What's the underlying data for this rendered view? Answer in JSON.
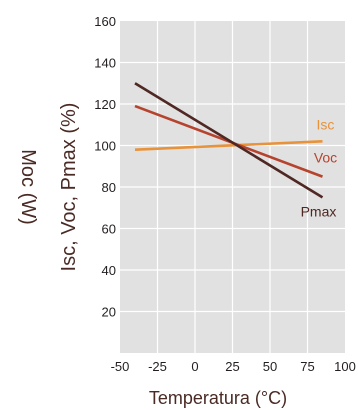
{
  "chart_data": {
    "type": "line",
    "ylabel_outer": "Moc (W)",
    "ylabel": "Isc, Voc, Pmax (%)",
    "xlabel": "Temperatura (°C)",
    "xlim": [
      -50,
      100
    ],
    "ylim": [
      0,
      160
    ],
    "xticks": [
      "-50",
      "-25",
      "0",
      "25",
      "50",
      "75",
      "100"
    ],
    "yticks": [
      "20",
      "40",
      "60",
      "80",
      "100",
      "120",
      "140",
      "160"
    ],
    "grid": true,
    "series": [
      {
        "name": "Isc",
        "color": "#e8923a",
        "x": [
          -40,
          85
        ],
        "y": [
          98,
          102
        ]
      },
      {
        "name": "Voc",
        "color": "#b5432e",
        "x": [
          -40,
          85
        ],
        "y": [
          119,
          85
        ]
      },
      {
        "name": "Pmax",
        "color": "#4f2723",
        "x": [
          -40,
          85
        ],
        "y": [
          130,
          75
        ]
      }
    ]
  }
}
